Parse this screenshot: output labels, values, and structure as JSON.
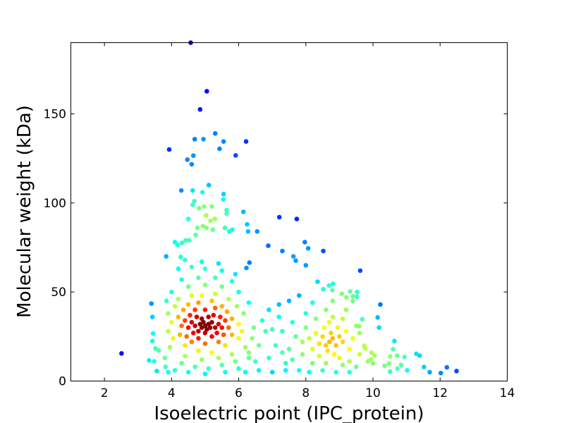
{
  "chart_data": {
    "type": "scatter",
    "title": "",
    "xlabel": "Isoelectric point (IPC_protein)",
    "ylabel": "Molecular weight (kDa)",
    "xlim": [
      1,
      14
    ],
    "ylim": [
      0,
      190
    ],
    "xticks": [
      2,
      4,
      6,
      8,
      10,
      12,
      14
    ],
    "yticks": [
      0,
      50,
      100,
      150
    ],
    "grid": false,
    "colormap": "jet (point density)",
    "points": [
      [
        4.57,
        190
      ],
      [
        5.05,
        162.7
      ],
      [
        4.85,
        152.5
      ],
      [
        3.93,
        130
      ],
      [
        5.3,
        139
      ],
      [
        4.69,
        135.8
      ],
      [
        4.95,
        135.8
      ],
      [
        5.55,
        134.5
      ],
      [
        6.22,
        134.5
      ],
      [
        5.43,
        130.4
      ],
      [
        5.91,
        126.7
      ],
      [
        4.65,
        126.6
      ],
      [
        4.47,
        124.3
      ],
      [
        4.6,
        121.7
      ],
      [
        5.11,
        110
      ],
      [
        4.29,
        107
      ],
      [
        4.63,
        107
      ],
      [
        4.92,
        106
      ],
      [
        5.55,
        105
      ],
      [
        5.54,
        102
      ],
      [
        4.68,
        101
      ],
      [
        4.63,
        99
      ],
      [
        4.82,
        97
      ],
      [
        4.97,
        98
      ],
      [
        5.2,
        98
      ],
      [
        6.14,
        95
      ],
      [
        5.64,
        96
      ],
      [
        5.64,
        94
      ],
      [
        7.21,
        92
      ],
      [
        7.73,
        91
      ],
      [
        6.25,
        88
      ],
      [
        6.28,
        84
      ],
      [
        6.55,
        84
      ],
      [
        4.5,
        91
      ],
      [
        5.03,
        93
      ],
      [
        5.29,
        91
      ],
      [
        5.16,
        90
      ],
      [
        5.81,
        85
      ],
      [
        5.59,
        86
      ],
      [
        5.72,
        84
      ],
      [
        4.77,
        86
      ],
      [
        4.93,
        87
      ],
      [
        5.04,
        86
      ],
      [
        5.23,
        85
      ],
      [
        6.88,
        76
      ],
      [
        7.97,
        78
      ],
      [
        8.07,
        74.5
      ],
      [
        8.52,
        73
      ],
      [
        7.3,
        73
      ],
      [
        7.63,
        70
      ],
      [
        7.7,
        67.6
      ],
      [
        8.0,
        65
      ],
      [
        9.62,
        62
      ],
      [
        4.72,
        82
      ],
      [
        4.1,
        78
      ],
      [
        4.31,
        77.6
      ],
      [
        4.42,
        79
      ],
      [
        4.52,
        79
      ],
      [
        4.18,
        76.5
      ],
      [
        3.84,
        70
      ],
      [
        4.27,
        69.7
      ],
      [
        6.32,
        66.5
      ],
      [
        6.23,
        63.5
      ],
      [
        10.22,
        43
      ],
      [
        10.14,
        35.7
      ],
      [
        10.18,
        30
      ],
      [
        10.64,
        22.5
      ],
      [
        10.6,
        17.9
      ],
      [
        10.51,
        13.8
      ],
      [
        10.72,
        14.3
      ],
      [
        10.94,
        13.5
      ],
      [
        11.29,
        15.3
      ],
      [
        11.39,
        14.3
      ],
      [
        10.35,
        8.6
      ],
      [
        10.48,
        9.9
      ],
      [
        10.73,
        7
      ],
      [
        10.84,
        9
      ],
      [
        11.02,
        6
      ],
      [
        10.51,
        5.3
      ],
      [
        11.52,
        7.9
      ],
      [
        11.69,
        5
      ],
      [
        12.02,
        4.5
      ],
      [
        12.2,
        7.7
      ],
      [
        12.49,
        5.6
      ],
      [
        9.96,
        15.9
      ],
      [
        10.05,
        14.3
      ],
      [
        9.94,
        12.2
      ],
      [
        9.85,
        11.1
      ],
      [
        10.0,
        9.9
      ],
      [
        9.68,
        34.7
      ],
      [
        9.59,
        30.8
      ],
      [
        9.74,
        19.8
      ],
      [
        9.77,
        18.3
      ],
      [
        2.51,
        15.5
      ],
      [
        3.4,
        43.5
      ],
      [
        3.43,
        36
      ],
      [
        3.45,
        26.7
      ],
      [
        3.43,
        22.5
      ],
      [
        3.33,
        11.6
      ],
      [
        3.48,
        11.1
      ],
      [
        3.56,
        5.6
      ],
      [
        3.52,
        18.3
      ],
      [
        3.62,
        17.2
      ],
      [
        9.53,
        50
      ],
      [
        9.32,
        50.3
      ],
      [
        9.4,
        47.6
      ],
      [
        9.52,
        47.4
      ],
      [
        9.21,
        47
      ],
      [
        9.07,
        49
      ],
      [
        8.81,
        54.6
      ],
      [
        8.69,
        53.6
      ],
      [
        8.79,
        51
      ],
      [
        8.52,
        51.6
      ],
      [
        8.35,
        55.8
      ],
      [
        5.0,
        31
      ],
      [
        4.9,
        30
      ],
      [
        5.1,
        32
      ],
      [
        4.95,
        33
      ],
      [
        5.05,
        29
      ],
      [
        4.85,
        32
      ],
      [
        5.15,
        30
      ],
      [
        4.9,
        35
      ],
      [
        5.0,
        27
      ],
      [
        5.1,
        36
      ],
      [
        4.8,
        28
      ],
      [
        5.2,
        33
      ],
      [
        4.7,
        31
      ],
      [
        5.3,
        30
      ],
      [
        4.75,
        36
      ],
      [
        5.25,
        37
      ],
      [
        4.8,
        24
      ],
      [
        5.2,
        25
      ],
      [
        4.6,
        33
      ],
      [
        5.4,
        32
      ],
      [
        4.65,
        27
      ],
      [
        5.35,
        27
      ],
      [
        4.7,
        40
      ],
      [
        5.0,
        40
      ],
      [
        5.3,
        41
      ],
      [
        4.5,
        30
      ],
      [
        5.5,
        30
      ],
      [
        4.55,
        37
      ],
      [
        5.45,
        36
      ],
      [
        4.6,
        22
      ],
      [
        5.0,
        21
      ],
      [
        5.4,
        22
      ],
      [
        4.4,
        34
      ],
      [
        5.6,
        34
      ],
      [
        4.45,
        25
      ],
      [
        5.55,
        26
      ],
      [
        4.8,
        44
      ],
      [
        5.2,
        45
      ],
      [
        4.5,
        43
      ],
      [
        5.5,
        42
      ],
      [
        4.3,
        31
      ],
      [
        5.7,
        30
      ],
      [
        4.35,
        40
      ],
      [
        5.65,
        39
      ],
      [
        4.4,
        20
      ],
      [
        4.8,
        17
      ],
      [
        5.2,
        16
      ],
      [
        5.6,
        20
      ],
      [
        4.9,
        48
      ],
      [
        4.6,
        48
      ],
      [
        5.3,
        49
      ],
      [
        4.2,
        36
      ],
      [
        5.8,
        35
      ],
      [
        4.25,
        26
      ],
      [
        5.8,
        26
      ],
      [
        4.4,
        14
      ],
      [
        4.9,
        12
      ],
      [
        5.4,
        13
      ],
      [
        5.8,
        15
      ],
      [
        4.2,
        46
      ],
      [
        5.7,
        46
      ],
      [
        4.0,
        33
      ],
      [
        6.0,
        32
      ],
      [
        4.05,
        24
      ],
      [
        6.0,
        24
      ],
      [
        4.1,
        42
      ],
      [
        5.95,
        42
      ],
      [
        4.5,
        53
      ],
      [
        5.0,
        54
      ],
      [
        5.5,
        53
      ],
      [
        4.3,
        10
      ],
      [
        4.7,
        8
      ],
      [
        5.1,
        7
      ],
      [
        5.5,
        9
      ],
      [
        5.9,
        11
      ],
      [
        3.9,
        28
      ],
      [
        6.1,
        28
      ],
      [
        3.95,
        19
      ],
      [
        6.2,
        19
      ],
      [
        3.9,
        38
      ],
      [
        6.15,
        38
      ],
      [
        4.0,
        50
      ],
      [
        6.0,
        50
      ],
      [
        4.3,
        57
      ],
      [
        4.8,
        58
      ],
      [
        5.3,
        58
      ],
      [
        5.8,
        56
      ],
      [
        4.1,
        6
      ],
      [
        4.5,
        5
      ],
      [
        5.0,
        4
      ],
      [
        5.6,
        5
      ],
      [
        6.0,
        7
      ],
      [
        3.8,
        13
      ],
      [
        6.3,
        13
      ],
      [
        3.85,
        45
      ],
      [
        6.3,
        44
      ],
      [
        4.2,
        63
      ],
      [
        4.6,
        64
      ],
      [
        5.0,
        63
      ],
      [
        5.5,
        62
      ],
      [
        5.9,
        60
      ],
      [
        4.4,
        68
      ],
      [
        4.9,
        67
      ],
      [
        5.4,
        66
      ],
      [
        3.82,
        8
      ],
      [
        3.9,
        5
      ],
      [
        6.4,
        24
      ],
      [
        6.45,
        30
      ],
      [
        8.7,
        22
      ],
      [
        8.8,
        24
      ],
      [
        8.6,
        20
      ],
      [
        8.9,
        20
      ],
      [
        8.75,
        27
      ],
      [
        8.5,
        25
      ],
      [
        9.0,
        25
      ],
      [
        8.65,
        17
      ],
      [
        8.85,
        15
      ],
      [
        8.4,
        21
      ],
      [
        9.1,
        22
      ],
      [
        8.55,
        30
      ],
      [
        8.95,
        30
      ],
      [
        8.3,
        27
      ],
      [
        9.2,
        28
      ],
      [
        8.4,
        14
      ],
      [
        9.0,
        13
      ],
      [
        8.2,
        18
      ],
      [
        9.3,
        18
      ],
      [
        8.7,
        33
      ],
      [
        8.3,
        35
      ],
      [
        9.1,
        35
      ],
      [
        8.6,
        10
      ],
      [
        9.1,
        9
      ],
      [
        8.1,
        24
      ],
      [
        9.4,
        24
      ],
      [
        8.0,
        30
      ],
      [
        9.5,
        31
      ],
      [
        8.2,
        10
      ],
      [
        9.3,
        11
      ],
      [
        8.5,
        6
      ],
      [
        8.9,
        5
      ],
      [
        9.3,
        5
      ],
      [
        7.9,
        15
      ],
      [
        9.6,
        15
      ],
      [
        8.0,
        38
      ],
      [
        8.6,
        40
      ],
      [
        9.2,
        40
      ],
      [
        7.8,
        6
      ],
      [
        8.1,
        5
      ],
      [
        7.7,
        25
      ],
      [
        7.6,
        33
      ],
      [
        7.5,
        18
      ],
      [
        7.4,
        10
      ],
      [
        7.3,
        28
      ],
      [
        7.2,
        36
      ],
      [
        7.1,
        20
      ],
      [
        7.0,
        5
      ],
      [
        6.9,
        13
      ],
      [
        6.8,
        28
      ],
      [
        6.7,
        34
      ],
      [
        6.6,
        20
      ],
      [
        6.5,
        11
      ],
      [
        6.6,
        6
      ],
      [
        6.9,
        40
      ],
      [
        7.2,
        43
      ],
      [
        7.5,
        45
      ],
      [
        7.8,
        48
      ],
      [
        8.2,
        44
      ],
      [
        8.8,
        45
      ],
      [
        9.4,
        45
      ],
      [
        7.4,
        6
      ],
      [
        7.6,
        12
      ],
      [
        7.9,
        22
      ],
      [
        6.3,
        16
      ],
      [
        6.2,
        5
      ],
      [
        7.0,
        29
      ],
      [
        7.3,
        16
      ],
      [
        8.8,
        36
      ],
      [
        9.5,
        8
      ],
      [
        9.6,
        27
      ]
    ]
  }
}
